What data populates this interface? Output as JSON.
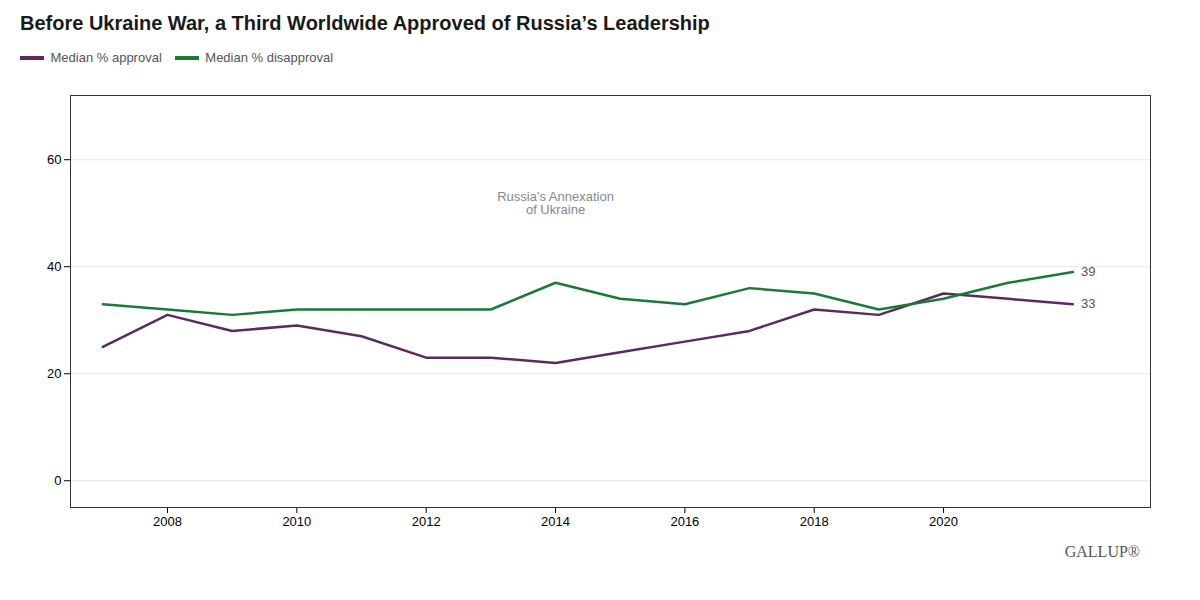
{
  "chart_data": {
    "type": "line",
    "title": "Before Ukraine War, a Third Worldwide Approved of Russia’s Leadership",
    "x": [
      2007,
      2008,
      2009,
      2010,
      2011,
      2012,
      2013,
      2014,
      2015,
      2016,
      2017,
      2018,
      2019,
      2020,
      2021,
      2022
    ],
    "series": [
      {
        "name": "Median % approval",
        "color": "#5c2a5e",
        "values": [
          25,
          31,
          28,
          29,
          27,
          23,
          23,
          22,
          24,
          26,
          28,
          32,
          31,
          35,
          34,
          33
        ]
      },
      {
        "name": "Median % disapproval",
        "color": "#1a7a3a",
        "values": [
          33,
          32,
          31,
          32,
          32,
          32,
          32,
          37,
          34,
          33,
          36,
          35,
          32,
          34,
          37,
          39
        ]
      }
    ],
    "annotations": [
      {
        "text": "Russia's Annexation\nof Ukraine",
        "x": 2014.0,
        "y": 54
      },
      {
        "text": "39",
        "x": 2022,
        "y": 39
      },
      {
        "text": "33",
        "x": 2022,
        "y": 33
      }
    ],
    "caption": "GALLUP®",
    "xlim": [
      2006.5,
      2023.2
    ],
    "xticks": [
      2008,
      2010,
      2012,
      2014,
      2016,
      2018,
      2020
    ],
    "ylim": [
      -5,
      72
    ],
    "yticks": [
      0,
      20,
      40,
      60
    ],
    "grid": true,
    "legend": "top left"
  }
}
